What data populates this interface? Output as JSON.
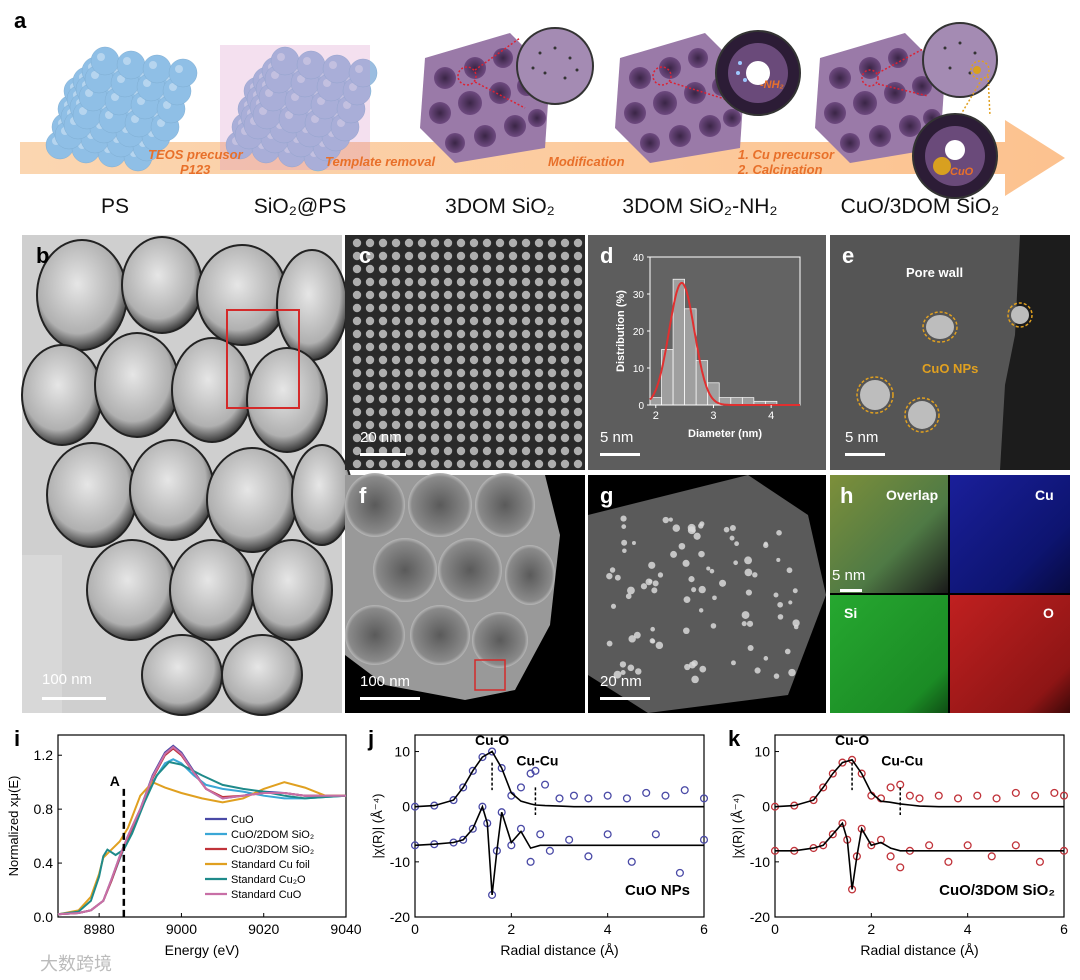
{
  "panel_a": {
    "label": "a",
    "stages": [
      "PS",
      "SiO₂@PS",
      "3DOM SiO₂",
      "3DOM SiO₂-NH₂",
      "CuO/3DOM SiO₂"
    ],
    "steps": [
      "TEOS precusor",
      "P123",
      "Template removal",
      "Modification",
      "1. Cu precursor",
      "2. Calcination"
    ],
    "inset_nh2": "-NH₂",
    "inset_cuo": "CuO"
  },
  "panel_b": {
    "label": "b",
    "scale": "100 nm"
  },
  "panel_c": {
    "label": "c",
    "scale": "20 nm"
  },
  "panel_d": {
    "label": "d",
    "scale": "5 nm"
  },
  "panel_e": {
    "label": "e",
    "scale": "5 nm",
    "pore_wall": "Pore wall",
    "cuo_nps": "CuO NPs"
  },
  "panel_f": {
    "label": "f",
    "scale": "100 nm"
  },
  "panel_g": {
    "label": "g",
    "scale": "20 nm"
  },
  "panel_h": {
    "label": "h",
    "scale": "5 nm",
    "overlap": "Overlap",
    "cu": "Cu",
    "si": "Si",
    "o": "O"
  },
  "chart_data": [
    {
      "panel": "d",
      "type": "bar",
      "xlabel": "Diameter (nm)",
      "ylabel": "Distribution (%)",
      "xlim": [
        1.9,
        4.5
      ],
      "ylim": [
        0,
        40
      ],
      "xticks": [
        "2",
        "3",
        "4"
      ],
      "yticks": [
        "0",
        "10",
        "20",
        "30",
        "40"
      ],
      "bin_width": 0.2,
      "bins": [
        2.0,
        2.2,
        2.4,
        2.6,
        2.8,
        3.0,
        3.2,
        3.4,
        3.6,
        3.8,
        4.0,
        4.2
      ],
      "values": [
        2,
        15,
        34,
        26,
        12,
        6,
        2,
        2,
        2,
        1,
        1,
        0
      ],
      "fit": {
        "type": "gaussian",
        "center": 2.45,
        "sigma": 0.22,
        "amplitude": 33
      }
    },
    {
      "panel": "i",
      "type": "line",
      "xlabel": "Energy (eV)",
      "ylabel": "Normalized xμ(E)",
      "xlim": [
        8970,
        9040
      ],
      "ylim": [
        0,
        1.35
      ],
      "xticks": [
        "8980",
        "9000",
        "9020",
        "9040"
      ],
      "yticks": [
        "0.0",
        "0.4",
        "0.8",
        "1.2"
      ],
      "marker": {
        "label": "A",
        "x": 8986
      },
      "legend_position": "bottom-right",
      "series": [
        {
          "name": "CuO",
          "color": "#4a4aa6",
          "x": [
            8970,
            8975,
            8978,
            8981,
            8983,
            8985,
            8987,
            8990,
            8993,
            8996,
            8998,
            9000,
            9003,
            9006,
            9010,
            9015,
            9020,
            9025,
            9030,
            9035,
            9040
          ],
          "y": [
            0.02,
            0.03,
            0.05,
            0.12,
            0.28,
            0.45,
            0.6,
            0.8,
            1.05,
            1.22,
            1.27,
            1.22,
            1.08,
            0.95,
            0.88,
            0.9,
            0.93,
            0.92,
            0.9,
            0.9,
            0.9
          ]
        },
        {
          "name": "CuO/2DOM SiO₂",
          "color": "#3aa7d6",
          "x": [
            8970,
            8975,
            8978,
            8981,
            8983,
            8985,
            8987,
            8990,
            8993,
            8996,
            8998,
            9000,
            9003,
            9006,
            9010,
            9015,
            9020,
            9025,
            9030,
            9035,
            9040
          ],
          "y": [
            0.02,
            0.03,
            0.05,
            0.12,
            0.27,
            0.43,
            0.58,
            0.78,
            1.0,
            1.14,
            1.17,
            1.14,
            1.05,
            0.98,
            0.95,
            0.93,
            0.9,
            0.88,
            0.88,
            0.89,
            0.9
          ]
        },
        {
          "name": "CuO/3DOM SiO₂",
          "color": "#c0333a",
          "x": [
            8970,
            8975,
            8978,
            8981,
            8983,
            8985,
            8987,
            8990,
            8993,
            8996,
            8998,
            9000,
            9003,
            9006,
            9010,
            9015,
            9020,
            9025,
            9030,
            9035,
            9040
          ],
          "y": [
            0.02,
            0.03,
            0.05,
            0.12,
            0.27,
            0.44,
            0.59,
            0.79,
            1.03,
            1.2,
            1.25,
            1.2,
            1.07,
            0.95,
            0.89,
            0.9,
            0.92,
            0.92,
            0.9,
            0.9,
            0.9
          ]
        },
        {
          "name": "Standard Cu foil",
          "color": "#e0a020",
          "x": [
            8970,
            8975,
            8978,
            8980,
            8981,
            8983,
            8985,
            8987,
            8990,
            8993,
            8996,
            9000,
            9005,
            9010,
            9015,
            9020,
            9025,
            9030,
            9035,
            9040
          ],
          "y": [
            0.02,
            0.05,
            0.15,
            0.32,
            0.44,
            0.5,
            0.56,
            0.66,
            0.9,
            1.0,
            0.96,
            0.92,
            0.88,
            0.85,
            0.88,
            0.95,
            1.0,
            0.96,
            0.9,
            0.9
          ]
        },
        {
          "name": "Standard Cu₂O",
          "color": "#1f8a8a",
          "x": [
            8970,
            8975,
            8978,
            8980,
            8981,
            8982,
            8984,
            8986,
            8988,
            8991,
            8994,
            8997,
            9000,
            9005,
            9010,
            9015,
            9020,
            9025,
            9030,
            9035,
            9040
          ],
          "y": [
            0.02,
            0.04,
            0.12,
            0.3,
            0.45,
            0.5,
            0.46,
            0.5,
            0.62,
            0.85,
            1.05,
            1.15,
            1.13,
            1.05,
            0.98,
            0.95,
            0.93,
            0.9,
            0.88,
            0.89,
            0.9
          ]
        },
        {
          "name": "Standard CuO",
          "color": "#c86fa6",
          "x": [
            8970,
            8975,
            8978,
            8981,
            8983,
            8985,
            8987,
            8990,
            8993,
            8996,
            8998,
            9000,
            9003,
            9006,
            9010,
            9015,
            9020,
            9025,
            9030,
            9035,
            9040
          ],
          "y": [
            0.02,
            0.03,
            0.05,
            0.12,
            0.28,
            0.45,
            0.6,
            0.8,
            1.04,
            1.21,
            1.26,
            1.21,
            1.07,
            0.95,
            0.88,
            0.9,
            0.92,
            0.92,
            0.9,
            0.9,
            0.9
          ]
        }
      ]
    },
    {
      "panel": "j",
      "type": "line",
      "xlabel": "Radial distance (Å)",
      "ylabel": "|χ(R)| (Å⁻⁴)",
      "xlim": [
        0,
        6
      ],
      "ylim": [
        -20,
        13
      ],
      "xticks": [
        "0",
        "2",
        "4",
        "6"
      ],
      "yticks": [
        "-20",
        "-10",
        "0",
        "10"
      ],
      "annotations": [
        "Cu-O",
        "Cu-Cu",
        "CuO NPs"
      ],
      "peak_markers": [
        1.6,
        2.5
      ],
      "data_color": "#4a4aa6",
      "fit_color": "#000000",
      "magnitude": {
        "x": [
          0,
          0.4,
          0.8,
          1.0,
          1.2,
          1.4,
          1.6,
          1.8,
          2.0,
          2.2,
          2.4,
          2.5,
          2.7,
          3.0,
          3.3,
          3.6,
          4.0,
          4.4,
          4.8,
          5.2,
          5.6,
          6.0
        ],
        "data": [
          0,
          0.2,
          1.2,
          3.5,
          6.5,
          9,
          10,
          7,
          2,
          3.5,
          6,
          6.5,
          4,
          1.5,
          2,
          1.5,
          2,
          1.5,
          2.5,
          2,
          3,
          1.5
        ],
        "fit": [
          0,
          0.2,
          1.2,
          3.5,
          6.5,
          9,
          10,
          7,
          2.5,
          1,
          0.5,
          0.3,
          0.2,
          0.1,
          0,
          0,
          0,
          0,
          0,
          0,
          0,
          0
        ]
      },
      "imaginary": {
        "x": [
          0,
          0.4,
          0.8,
          1.0,
          1.2,
          1.4,
          1.5,
          1.6,
          1.7,
          1.8,
          2.0,
          2.2,
          2.4,
          2.6,
          2.8,
          3.2,
          3.6,
          4.0,
          4.5,
          5.0,
          5.5,
          6.0
        ],
        "data": [
          -7,
          -6.8,
          -6.5,
          -6,
          -4,
          0,
          -3,
          -16,
          -8,
          -1,
          -7,
          -4,
          -10,
          -5,
          -8,
          -6,
          -9,
          -5,
          -10,
          -5,
          -12,
          -6
        ],
        "fit": [
          -7,
          -6.8,
          -6.5,
          -6,
          -4,
          0,
          -3,
          -16,
          -8,
          -1,
          -6.5,
          -4.5,
          -7.5,
          -7,
          -7,
          -7,
          -7,
          -7,
          -7,
          -7,
          -7,
          -7
        ]
      }
    },
    {
      "panel": "k",
      "type": "line",
      "xlabel": "Radial distance (Å)",
      "ylabel": "|χ(R)| (Å⁻⁴)",
      "xlim": [
        0,
        6
      ],
      "ylim": [
        -20,
        13
      ],
      "xticks": [
        "0",
        "2",
        "4",
        "6"
      ],
      "yticks": [
        "-20",
        "-10",
        "0",
        "10"
      ],
      "annotations": [
        "Cu-O",
        "Cu-Cu",
        "CuO/3DOM SiO₂"
      ],
      "peak_markers": [
        1.6,
        2.6
      ],
      "data_color": "#c0333a",
      "fit_color": "#000000",
      "magnitude": {
        "x": [
          0,
          0.4,
          0.8,
          1.0,
          1.2,
          1.4,
          1.6,
          1.8,
          2.0,
          2.2,
          2.4,
          2.6,
          2.8,
          3.0,
          3.4,
          3.8,
          4.2,
          4.6,
          5.0,
          5.4,
          5.8,
          6.0
        ],
        "data": [
          0,
          0.2,
          1.2,
          3.5,
          6,
          8,
          8.5,
          6,
          2,
          1.5,
          3.5,
          4,
          2,
          1.5,
          2,
          1.5,
          2,
          1.5,
          2.5,
          2,
          2.5,
          2
        ],
        "fit": [
          0,
          0.2,
          1.2,
          3.5,
          6,
          8,
          8.5,
          6,
          2.5,
          1,
          0.8,
          0.5,
          0.3,
          0.1,
          0,
          0,
          0,
          0,
          0,
          0,
          0,
          0
        ]
      },
      "imaginary": {
        "x": [
          0,
          0.4,
          0.8,
          1.0,
          1.2,
          1.4,
          1.5,
          1.6,
          1.7,
          1.8,
          2.0,
          2.2,
          2.4,
          2.6,
          2.8,
          3.2,
          3.6,
          4.0,
          4.5,
          5.0,
          5.5,
          6.0
        ],
        "data": [
          -8,
          -8,
          -7.5,
          -7,
          -5,
          -3,
          -6,
          -15,
          -9,
          -4,
          -7,
          -6,
          -9,
          -11,
          -8,
          -7,
          -10,
          -7,
          -9,
          -7,
          -10,
          -8
        ],
        "fit": [
          -8,
          -8,
          -7.5,
          -7,
          -5,
          -3,
          -6,
          -15,
          -9,
          -4,
          -7,
          -6.5,
          -7.5,
          -8,
          -8,
          -8,
          -8,
          -8,
          -8,
          -8,
          -8,
          -8
        ]
      }
    }
  ],
  "watermark": "大数跨境"
}
